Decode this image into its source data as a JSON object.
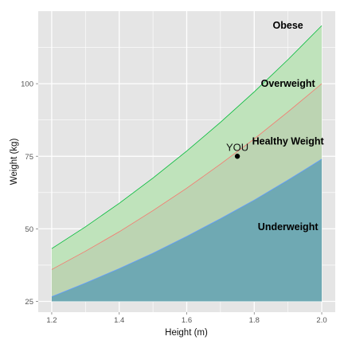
{
  "chart_data": {
    "type": "area",
    "title": "",
    "xlabel": "Height (m)",
    "ylabel": "Weight (kg)",
    "xlim": [
      1.16,
      2.04
    ],
    "ylim": [
      21.3,
      125.0
    ],
    "xticks": [
      1.2,
      1.4,
      1.6,
      1.8,
      2.0
    ],
    "xtick_labels": [
      "1.2",
      "1.4",
      "1.6",
      "1.8",
      "2.0"
    ],
    "yticks": [
      25,
      50,
      75,
      100
    ],
    "ytick_labels": [
      "25",
      "50",
      "75",
      "100"
    ],
    "grid": true,
    "legend": "none",
    "x": [
      1.2,
      1.3,
      1.4,
      1.5,
      1.6,
      1.7,
      1.8,
      1.9,
      2.0
    ],
    "baseline": 25,
    "series": [
      {
        "key": "underweight",
        "values": [
          26.6,
          31.3,
          36.3,
          41.6,
          47.4,
          53.5,
          59.9,
          66.8,
          74.0
        ],
        "color": "#619CFF",
        "fill": "#6fa9b3"
      },
      {
        "key": "healthy",
        "values": [
          36.0,
          42.3,
          49.0,
          56.3,
          64.0,
          72.3,
          81.0,
          90.3,
          100.0
        ],
        "color": "#F8766D",
        "fill": "#bcd4b2"
      },
      {
        "key": "overweight",
        "values": [
          43.2,
          50.7,
          58.8,
          67.5,
          76.8,
          86.7,
          97.2,
          108.3,
          120.0
        ],
        "color": "#00BA38",
        "fill": "#bfe3bb"
      }
    ],
    "zone_labels": [
      {
        "text": "Underweight",
        "x": 1.9,
        "y": 49.5
      },
      {
        "text": "Healthy Weight",
        "x": 1.9,
        "y": 79
      },
      {
        "text": "Overweight",
        "x": 1.9,
        "y": 99
      },
      {
        "text": "Obese",
        "x": 1.9,
        "y": 119
      }
    ],
    "point": {
      "x": 1.75,
      "y": 75,
      "label": "YOU"
    },
    "colors": {
      "panel": "#e5e5e5",
      "grid": "#ffffff"
    }
  }
}
